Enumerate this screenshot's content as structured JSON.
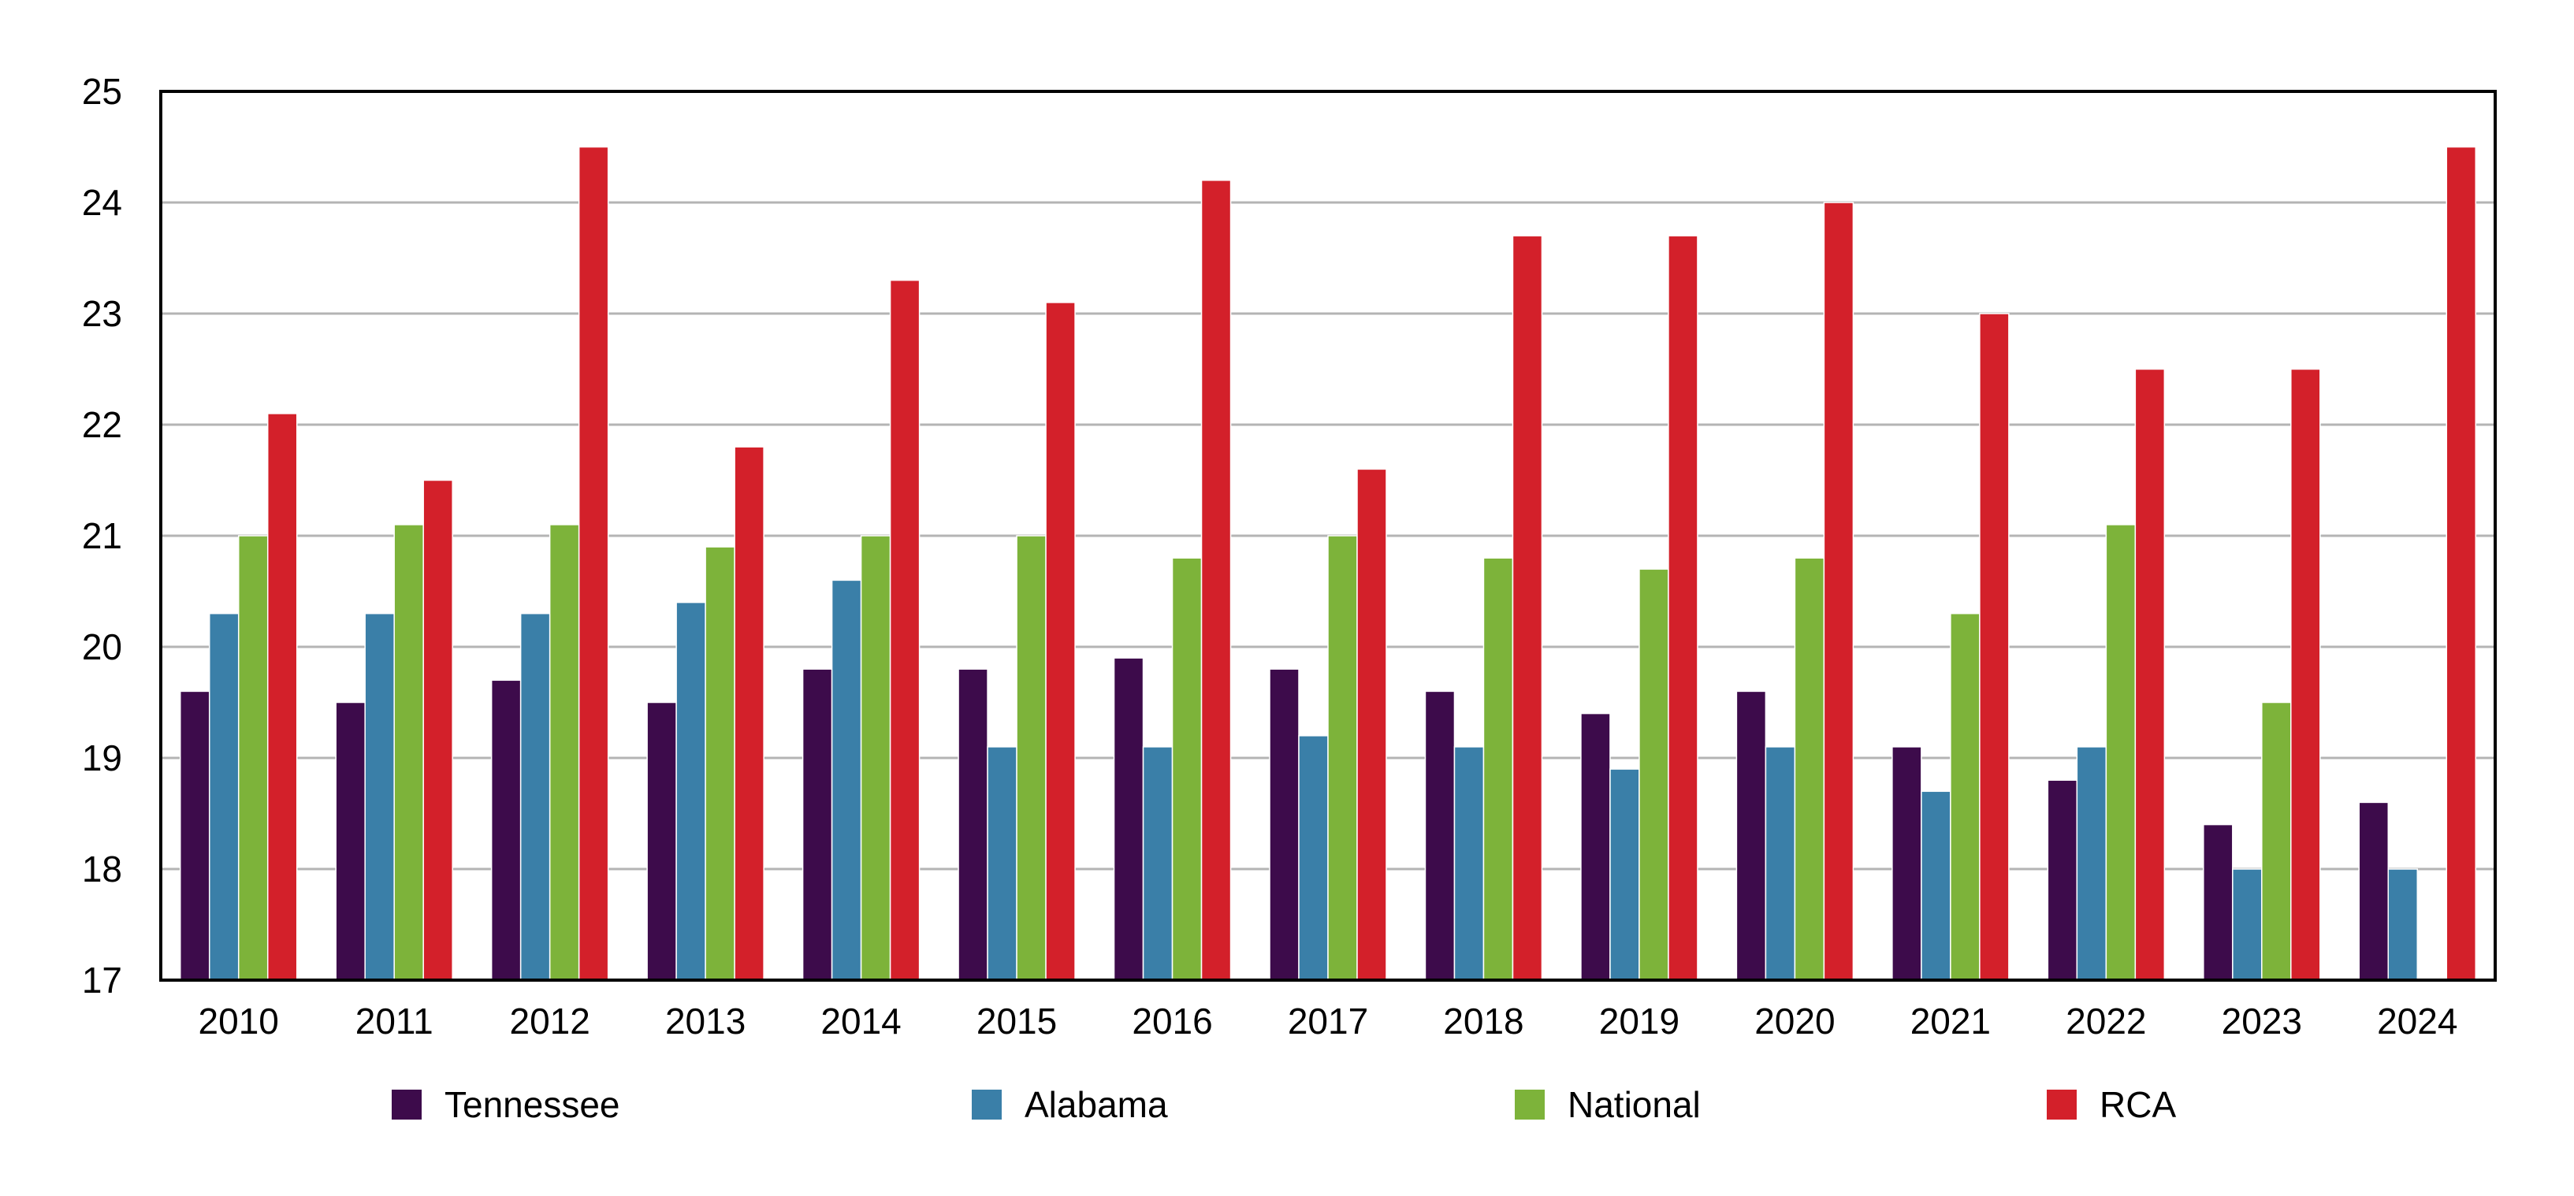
{
  "chart_data": {
    "type": "bar",
    "title": "",
    "xlabel": "",
    "ylabel": "",
    "ylim": [
      17,
      25
    ],
    "yticks": [
      17,
      18,
      19,
      20,
      21,
      22,
      23,
      24,
      25
    ],
    "grid": true,
    "legend_position": "bottom",
    "categories": [
      "2010",
      "2011",
      "2012",
      "2013",
      "2014",
      "2015",
      "2016",
      "2017",
      "2018",
      "2019",
      "2020",
      "2021",
      "2022",
      "2023",
      "2024"
    ],
    "series": [
      {
        "name": "Tennessee",
        "color": "#3d0b4b",
        "values": [
          19.6,
          19.5,
          19.7,
          19.5,
          19.8,
          19.8,
          19.9,
          19.8,
          19.6,
          19.4,
          19.6,
          19.1,
          18.8,
          18.4,
          18.6
        ]
      },
      {
        "name": "Alabama",
        "color": "#3a7fa8",
        "values": [
          20.3,
          20.3,
          20.3,
          20.4,
          20.6,
          19.1,
          19.1,
          19.2,
          19.1,
          18.9,
          19.1,
          18.7,
          19.1,
          18.0,
          18.0
        ]
      },
      {
        "name": "National",
        "color": "#7db33a",
        "values": [
          21.0,
          21.1,
          21.1,
          20.9,
          21.0,
          21.0,
          20.8,
          21.0,
          20.8,
          20.7,
          20.8,
          20.3,
          21.1,
          19.5,
          null
        ]
      },
      {
        "name": "RCA",
        "color": "#d3202a",
        "values": [
          22.1,
          21.5,
          24.5,
          21.8,
          23.3,
          23.1,
          24.2,
          21.6,
          23.7,
          23.7,
          24.0,
          23.0,
          22.5,
          22.5,
          24.5
        ]
      }
    ]
  }
}
